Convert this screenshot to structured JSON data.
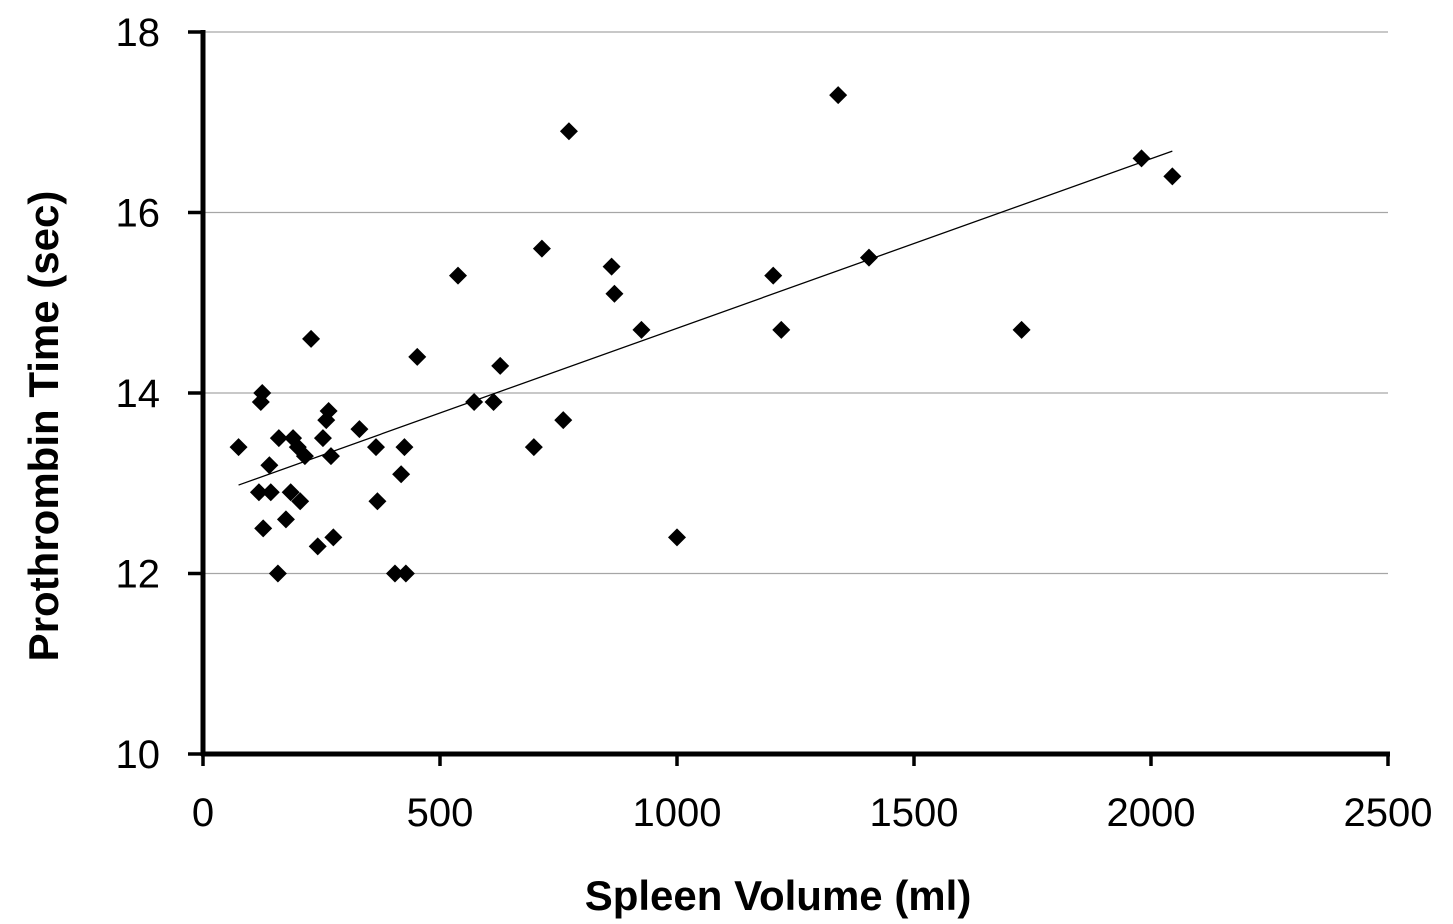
{
  "chart_data": {
    "type": "scatter",
    "title": "",
    "xlabel": "Spleen Volume (ml)",
    "ylabel": "Prothrombin Time (sec)",
    "xlim": [
      0,
      2500
    ],
    "ylim": [
      10,
      18
    ],
    "xticks": [
      0,
      500,
      1000,
      1500,
      2000,
      2500
    ],
    "yticks": [
      10,
      12,
      14,
      16,
      18
    ],
    "xtick_labels": [
      "0",
      "500",
      "1000",
      "1500",
      "2000",
      "2500"
    ],
    "ytick_labels": [
      "10",
      "12",
      "14",
      "16",
      "18"
    ],
    "grid": "horizontal",
    "legend": "none",
    "marker": "diamond",
    "marker_color": "#000000",
    "series": [
      {
        "points": [
          [
            75,
            13.4
          ],
          [
            118,
            12.9
          ],
          [
            122,
            13.9
          ],
          [
            125,
            14.0
          ],
          [
            127,
            12.5
          ],
          [
            140,
            13.2
          ],
          [
            143,
            12.9
          ],
          [
            158,
            12.0
          ],
          [
            160,
            13.5
          ],
          [
            175,
            12.6
          ],
          [
            185,
            12.9
          ],
          [
            190,
            13.5
          ],
          [
            200,
            13.4
          ],
          [
            205,
            12.8
          ],
          [
            215,
            13.3
          ],
          [
            228,
            14.6
          ],
          [
            242,
            12.3
          ],
          [
            253,
            13.5
          ],
          [
            260,
            13.7
          ],
          [
            265,
            13.8
          ],
          [
            270,
            13.3
          ],
          [
            275,
            12.4
          ],
          [
            330,
            13.6
          ],
          [
            365,
            13.4
          ],
          [
            368,
            12.8
          ],
          [
            405,
            12.0
          ],
          [
            418,
            13.1
          ],
          [
            425,
            13.4
          ],
          [
            428,
            12.0
          ],
          [
            452,
            14.4
          ],
          [
            538,
            15.3
          ],
          [
            572,
            13.9
          ],
          [
            613,
            13.9
          ],
          [
            627,
            14.3
          ],
          [
            698,
            13.4
          ],
          [
            715,
            15.6
          ],
          [
            760,
            13.7
          ],
          [
            772,
            16.9
          ],
          [
            862,
            15.4
          ],
          [
            868,
            15.1
          ],
          [
            925,
            14.7
          ],
          [
            1000,
            12.4
          ],
          [
            1203,
            15.3
          ],
          [
            1220,
            14.7
          ],
          [
            1340,
            17.3
          ],
          [
            1405,
            15.5
          ],
          [
            1727,
            14.7
          ],
          [
            1980,
            16.6
          ],
          [
            2045,
            16.4
          ]
        ]
      }
    ],
    "trendline": {
      "type": "linear",
      "x": [
        75,
        2045
      ],
      "y": [
        12.98,
        16.68
      ]
    }
  }
}
